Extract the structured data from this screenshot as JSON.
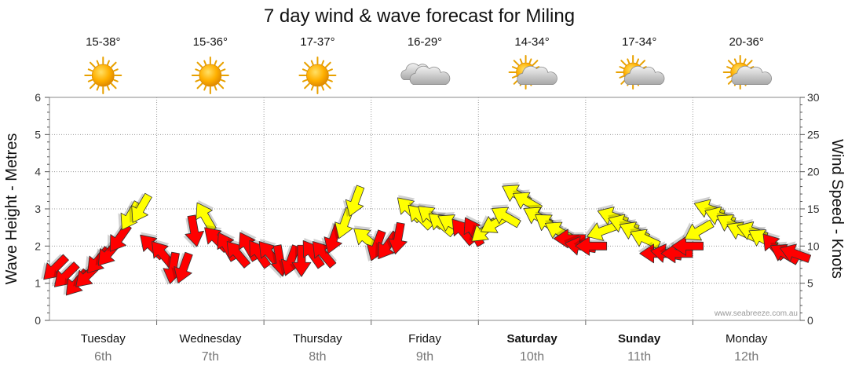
{
  "chart_data": {
    "type": "wind-wave-forecast",
    "title": "7 day wind & wave forecast for Miling",
    "ylabel_left": "Wave Height - Metres",
    "ylabel_right": "Wind Speed - Knots",
    "ylim_left": [
      0,
      6
    ],
    "ylim_right": [
      0,
      30
    ],
    "left_ticks": [
      "0",
      "1",
      "2",
      "3",
      "4",
      "5",
      "6"
    ],
    "right_ticks": [
      "0",
      "5",
      "10",
      "15",
      "20",
      "25",
      "30"
    ],
    "credit": "www.seabreeze.com.au",
    "colors": {
      "strong": "#ff0000",
      "light": "#ffff00",
      "outline": "#333333",
      "grid": "#999999"
    },
    "days": [
      {
        "name": "Tuesday",
        "date": "6th",
        "bold": false,
        "temp": "15-38°",
        "icon": "sunny-icon"
      },
      {
        "name": "Wednesday",
        "date": "7th",
        "bold": false,
        "temp": "15-36°",
        "icon": "sunny-icon"
      },
      {
        "name": "Thursday",
        "date": "8th",
        "bold": false,
        "temp": "17-37°",
        "icon": "sunny-icon"
      },
      {
        "name": "Friday",
        "date": "9th",
        "bold": false,
        "temp": "16-29°",
        "icon": "cloudy-icon"
      },
      {
        "name": "Saturday",
        "date": "10th",
        "bold": true,
        "temp": "14-34°",
        "icon": "partly-cloudy-icon"
      },
      {
        "name": "Sunday",
        "date": "11th",
        "bold": true,
        "temp": "17-34°",
        "icon": "partly-cloudy-icon"
      },
      {
        "name": "Monday",
        "date": "12th",
        "bold": false,
        "temp": "20-36°",
        "icon": "partly-cloudy-icon"
      }
    ],
    "wind": [
      {
        "t": 0.05,
        "speed": 7,
        "dir": 225,
        "strong": true
      },
      {
        "t": 0.15,
        "speed": 6,
        "dir": 225,
        "strong": true
      },
      {
        "t": 0.25,
        "speed": 5,
        "dir": 220,
        "strong": true
      },
      {
        "t": 0.35,
        "speed": 6,
        "dir": 225,
        "strong": true
      },
      {
        "t": 0.45,
        "speed": 8,
        "dir": 220,
        "strong": true
      },
      {
        "t": 0.55,
        "speed": 9,
        "dir": 220,
        "strong": true
      },
      {
        "t": 0.65,
        "speed": 11,
        "dir": 215,
        "strong": true
      },
      {
        "t": 0.75,
        "speed": 14,
        "dir": 210,
        "strong": false
      },
      {
        "t": 0.85,
        "speed": 15,
        "dir": 210,
        "strong": false
      },
      {
        "t": 0.95,
        "speed": 10,
        "dir": 315,
        "strong": true
      },
      {
        "t": 1.05,
        "speed": 9,
        "dir": 320,
        "strong": true
      },
      {
        "t": 1.15,
        "speed": 7,
        "dir": 190,
        "strong": true
      },
      {
        "t": 1.25,
        "speed": 7,
        "dir": 200,
        "strong": true
      },
      {
        "t": 1.35,
        "speed": 12,
        "dir": 170,
        "strong": true
      },
      {
        "t": 1.45,
        "speed": 14,
        "dir": 330,
        "strong": false
      },
      {
        "t": 1.55,
        "speed": 11,
        "dir": 315,
        "strong": true
      },
      {
        "t": 1.65,
        "speed": 10,
        "dir": 330,
        "strong": true
      },
      {
        "t": 1.75,
        "speed": 9,
        "dir": 320,
        "strong": true
      },
      {
        "t": 1.85,
        "speed": 10,
        "dir": 330,
        "strong": true
      },
      {
        "t": 1.95,
        "speed": 9,
        "dir": 325,
        "strong": true
      },
      {
        "t": 2.05,
        "speed": 9,
        "dir": 320,
        "strong": true
      },
      {
        "t": 2.15,
        "speed": 8,
        "dir": 170,
        "strong": true
      },
      {
        "t": 2.25,
        "speed": 8,
        "dir": 200,
        "strong": true
      },
      {
        "t": 2.35,
        "speed": 8,
        "dir": 180,
        "strong": true
      },
      {
        "t": 2.45,
        "speed": 9,
        "dir": 325,
        "strong": true
      },
      {
        "t": 2.55,
        "speed": 9,
        "dir": 320,
        "strong": true
      },
      {
        "t": 2.65,
        "speed": 11,
        "dir": 200,
        "strong": true
      },
      {
        "t": 2.75,
        "speed": 13,
        "dir": 200,
        "strong": false
      },
      {
        "t": 2.85,
        "speed": 16,
        "dir": 200,
        "strong": false
      },
      {
        "t": 2.95,
        "speed": 11,
        "dir": 310,
        "strong": false
      },
      {
        "t": 3.05,
        "speed": 10,
        "dir": 200,
        "strong": true
      },
      {
        "t": 3.15,
        "speed": 10,
        "dir": 215,
        "strong": true
      },
      {
        "t": 3.25,
        "speed": 11,
        "dir": 190,
        "strong": true
      },
      {
        "t": 3.35,
        "speed": 15,
        "dir": 315,
        "strong": false
      },
      {
        "t": 3.45,
        "speed": 14,
        "dir": 315,
        "strong": false
      },
      {
        "t": 3.55,
        "speed": 14,
        "dir": 310,
        "strong": false
      },
      {
        "t": 3.65,
        "speed": 13,
        "dir": 310,
        "strong": false
      },
      {
        "t": 3.75,
        "speed": 13,
        "dir": 300,
        "strong": false
      },
      {
        "t": 3.85,
        "speed": 12,
        "dir": 320,
        "strong": true
      },
      {
        "t": 3.95,
        "speed": 12,
        "dir": 330,
        "strong": true
      },
      {
        "t": 4.05,
        "speed": 12,
        "dir": 230,
        "strong": false
      },
      {
        "t": 4.15,
        "speed": 13,
        "dir": 240,
        "strong": false
      },
      {
        "t": 4.25,
        "speed": 14,
        "dir": 300,
        "strong": false
      },
      {
        "t": 4.35,
        "speed": 17,
        "dir": 300,
        "strong": false
      },
      {
        "t": 4.45,
        "speed": 16,
        "dir": 300,
        "strong": false
      },
      {
        "t": 4.55,
        "speed": 14,
        "dir": 300,
        "strong": false
      },
      {
        "t": 4.65,
        "speed": 13,
        "dir": 305,
        "strong": false
      },
      {
        "t": 4.75,
        "speed": 12,
        "dir": 300,
        "strong": false
      },
      {
        "t": 4.85,
        "speed": 11,
        "dir": 270,
        "strong": true
      },
      {
        "t": 4.95,
        "speed": 10,
        "dir": 280,
        "strong": true
      },
      {
        "t": 5.05,
        "speed": 10,
        "dir": 270,
        "strong": true
      },
      {
        "t": 5.15,
        "speed": 12,
        "dir": 250,
        "strong": false
      },
      {
        "t": 5.25,
        "speed": 14,
        "dir": 290,
        "strong": false
      },
      {
        "t": 5.35,
        "speed": 13,
        "dir": 290,
        "strong": false
      },
      {
        "t": 5.45,
        "speed": 12,
        "dir": 295,
        "strong": false
      },
      {
        "t": 5.55,
        "speed": 11,
        "dir": 295,
        "strong": false
      },
      {
        "t": 5.65,
        "speed": 9,
        "dir": 270,
        "strong": true
      },
      {
        "t": 5.75,
        "speed": 9,
        "dir": 280,
        "strong": true
      },
      {
        "t": 5.85,
        "speed": 9,
        "dir": 270,
        "strong": true
      },
      {
        "t": 5.95,
        "speed": 10,
        "dir": 270,
        "strong": true
      },
      {
        "t": 6.05,
        "speed": 12,
        "dir": 240,
        "strong": false
      },
      {
        "t": 6.15,
        "speed": 15,
        "dir": 290,
        "strong": false
      },
      {
        "t": 6.25,
        "speed": 14,
        "dir": 290,
        "strong": false
      },
      {
        "t": 6.35,
        "speed": 13,
        "dir": 300,
        "strong": false
      },
      {
        "t": 6.45,
        "speed": 12,
        "dir": 295,
        "strong": false
      },
      {
        "t": 6.55,
        "speed": 12,
        "dir": 290,
        "strong": false
      },
      {
        "t": 6.65,
        "speed": 11,
        "dir": 300,
        "strong": false
      },
      {
        "t": 6.75,
        "speed": 10,
        "dir": 320,
        "strong": true
      },
      {
        "t": 6.85,
        "speed": 9,
        "dir": 300,
        "strong": true
      },
      {
        "t": 6.95,
        "speed": 9,
        "dir": 290,
        "strong": true
      }
    ]
  }
}
